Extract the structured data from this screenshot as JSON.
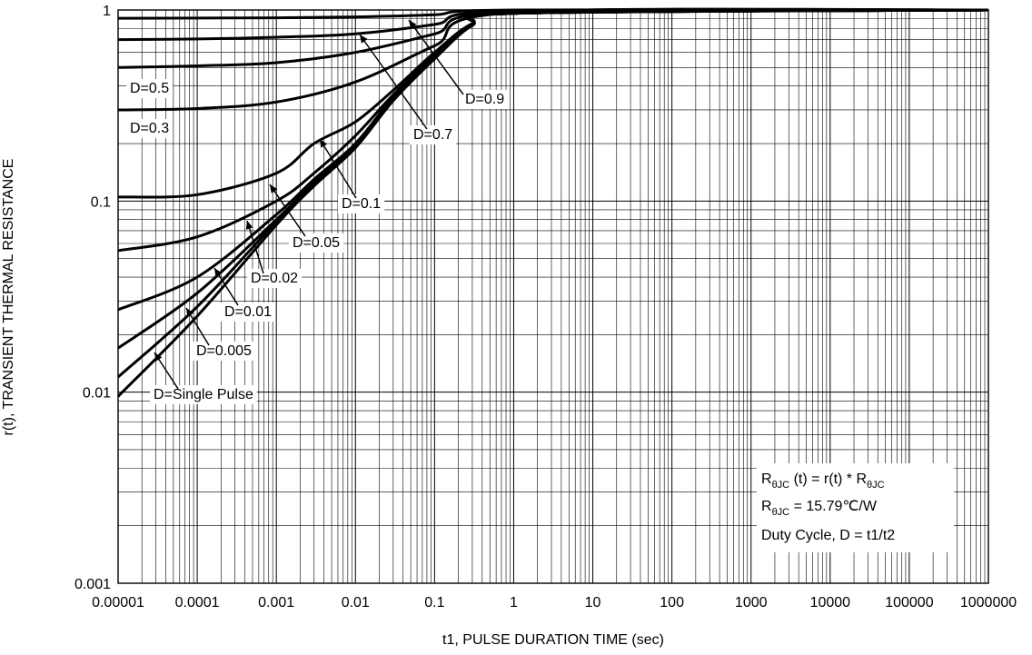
{
  "chart_data": {
    "type": "line",
    "xscale": "log",
    "yscale": "log",
    "xlim": [
      1e-05,
      1000000
    ],
    "ylim": [
      0.001,
      1
    ],
    "grid": true,
    "xlabel": "t1, PULSE DURATION TIME (sec)",
    "ylabel": "r(t), TRANSIENT THERMAL RESISTANCE",
    "xticks": [
      "0.00001",
      "0.0001",
      "0.001",
      "0.01",
      "0.1",
      "1",
      "10",
      "100",
      "1000",
      "10000",
      "100000",
      "1000000"
    ],
    "yticks": [
      "0.001",
      "0.01",
      "0.1",
      "1"
    ],
    "line_color": "#000000",
    "series": [
      {
        "name": "D=0.9",
        "x": [
          1e-05,
          0.0001,
          0.001,
          0.01,
          0.1,
          1,
          1000000
        ],
        "y": [
          0.905,
          0.907,
          0.91,
          0.92,
          0.945,
          1.0,
          1.0
        ]
      },
      {
        "name": "D=0.7",
        "x": [
          1e-05,
          0.0001,
          0.001,
          0.01,
          0.1,
          1,
          1000000
        ],
        "y": [
          0.7,
          0.705,
          0.72,
          0.75,
          0.84,
          0.99,
          1.0
        ]
      },
      {
        "name": "D=0.5",
        "x": [
          1e-05,
          0.0001,
          0.001,
          0.01,
          0.1,
          1,
          1000000
        ],
        "y": [
          0.5,
          0.51,
          0.53,
          0.6,
          0.75,
          0.98,
          1.0
        ]
      },
      {
        "name": "D=0.3",
        "x": [
          1e-05,
          0.0001,
          0.001,
          0.01,
          0.1,
          1,
          1000000
        ],
        "y": [
          0.3,
          0.305,
          0.33,
          0.42,
          0.65,
          0.97,
          1.0
        ]
      },
      {
        "name": "D=0.1",
        "x": [
          1e-05,
          0.0001,
          0.001,
          0.003,
          0.01,
          0.03,
          0.1,
          0.3,
          1,
          1000000
        ],
        "y": [
          0.105,
          0.108,
          0.14,
          0.2,
          0.26,
          0.38,
          0.6,
          0.85,
          0.96,
          1.0
        ]
      },
      {
        "name": "D=0.05",
        "x": [
          1e-05,
          0.0001,
          0.001,
          0.003,
          0.01,
          0.03,
          0.1,
          0.3,
          1,
          1000000
        ],
        "y": [
          0.055,
          0.065,
          0.1,
          0.14,
          0.22,
          0.36,
          0.58,
          0.84,
          0.96,
          1.0
        ]
      },
      {
        "name": "D=0.02",
        "x": [
          1e-05,
          0.0001,
          0.001,
          0.003,
          0.01,
          0.03,
          0.1,
          0.3,
          1,
          1000000
        ],
        "y": [
          0.027,
          0.04,
          0.085,
          0.13,
          0.2,
          0.35,
          0.57,
          0.83,
          0.96,
          1.0
        ]
      },
      {
        "name": "D=0.01",
        "x": [
          1e-05,
          0.0001,
          0.001,
          0.003,
          0.01,
          0.03,
          0.1,
          0.3,
          1,
          1000000
        ],
        "y": [
          0.017,
          0.033,
          0.08,
          0.125,
          0.2,
          0.34,
          0.56,
          0.83,
          0.96,
          1.0
        ]
      },
      {
        "name": "D=0.005",
        "x": [
          1e-05,
          0.0001,
          0.001,
          0.003,
          0.01,
          0.03,
          0.1,
          0.3,
          1,
          1000000
        ],
        "y": [
          0.012,
          0.028,
          0.078,
          0.122,
          0.195,
          0.34,
          0.56,
          0.83,
          0.96,
          1.0
        ]
      },
      {
        "name": "D=Single Pulse",
        "x": [
          1e-05,
          0.0001,
          0.001,
          0.003,
          0.01,
          0.03,
          0.1,
          0.3,
          1,
          1000000
        ],
        "y": [
          0.0095,
          0.025,
          0.075,
          0.12,
          0.19,
          0.335,
          0.555,
          0.83,
          0.96,
          1.0
        ]
      }
    ],
    "annotations": [
      {
        "text": "D=0.9",
        "arrow": true
      },
      {
        "text": "D=0.7",
        "arrow": true
      },
      {
        "text": "D=0.5",
        "arrow": false
      },
      {
        "text": "D=0.3",
        "arrow": false
      },
      {
        "text": "D=0.1",
        "arrow": true
      },
      {
        "text": "D=0.05",
        "arrow": true
      },
      {
        "text": "D=0.02",
        "arrow": true
      },
      {
        "text": "D=0.01",
        "arrow": true
      },
      {
        "text": "D=0.005",
        "arrow": true
      },
      {
        "text": "D=Single Pulse",
        "arrow": true
      }
    ],
    "notes": {
      "line1": {
        "a": "R",
        "a_sub": "θJC",
        "b": " (t) = r(t) * R",
        "b_sub": "θJC"
      },
      "line2": {
        "a": "R",
        "a_sub": "θJC",
        "b": " = 15.79℃/W"
      },
      "line3": "Duty Cycle, D = t1/t2"
    }
  }
}
